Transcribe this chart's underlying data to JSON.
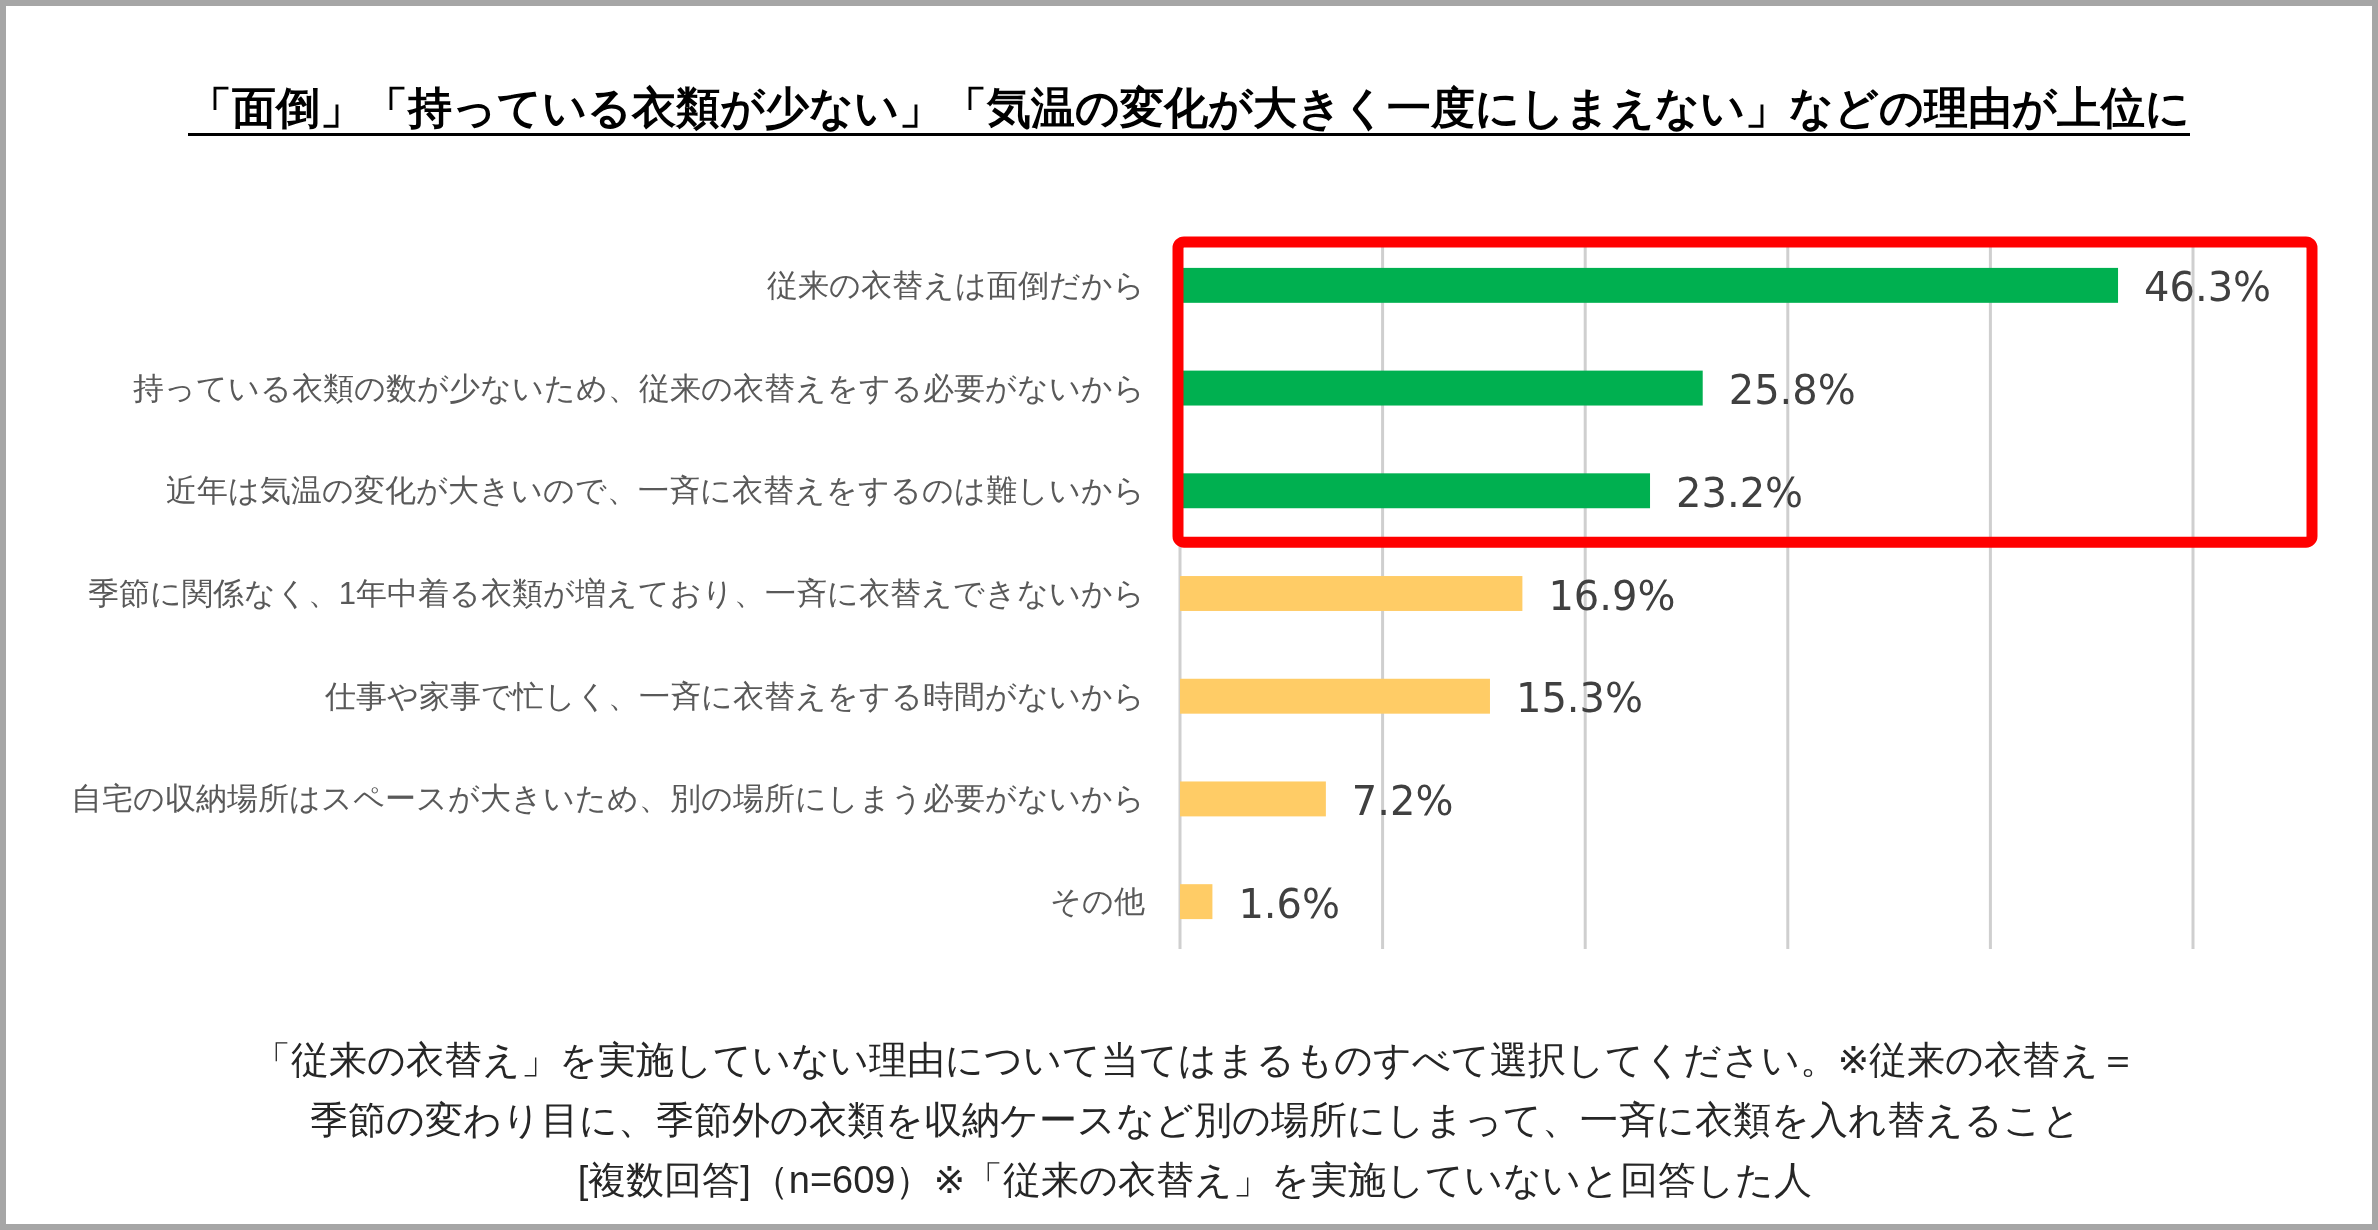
{
  "chart_data": {
    "type": "bar",
    "orientation": "horizontal",
    "title": "「面倒」「持っている衣類が少ない」「気温の変化が大きく一度にしまえない」などの理由が上位に",
    "categories": [
      "従来の衣替えは面倒だから",
      "持っている衣類の数が少ないため、従来の衣替えをする必要がないから",
      "近年は気温の変化が大きいので、一斉に衣替えをするのは難しいから",
      "季節に関係なく、1年中着る衣類が増えており、一斉に衣替えできないから",
      "仕事や家事で忙しく、一斉に衣替えをする時間がないから",
      "自宅の収納場所はスペースが大きいため、別の場所にしまう必要がないから",
      "その他"
    ],
    "values": [
      46.3,
      25.8,
      23.2,
      16.9,
      15.3,
      7.2,
      1.6
    ],
    "colors": [
      "#00b050",
      "#00b050",
      "#00b050",
      "#ffcc66",
      "#ffcc66",
      "#ffcc66",
      "#ffcc66"
    ],
    "value_labels": [
      "46.3%",
      "25.8%",
      "23.2%",
      "16.9%",
      "15.3%",
      "7.2%",
      "1.6%"
    ],
    "xlim": [
      0,
      50
    ],
    "xticks": [
      {
        "value": 0,
        "label": null
      },
      {
        "value": 10,
        "label": null
      },
      {
        "value": 20,
        "label": null
      },
      {
        "value": 30,
        "label": null
      },
      {
        "value": 40,
        "label": null
      },
      {
        "value": 50,
        "label": null
      }
    ],
    "grid": "x",
    "tick_labels": "y",
    "annotations": [
      "「従来の衣替え」を実施していない理由について当てはまるものすべて選択してください。※従来の衣替え＝季節の変わり目に、季節外の衣類を収納ケースなど別の場所にしまって、一斉に衣類を入れ替えること",
      "[複数回答]（n=609）※「従来の衣替え」を実施していないと回答した人"
    ]
  }
}
